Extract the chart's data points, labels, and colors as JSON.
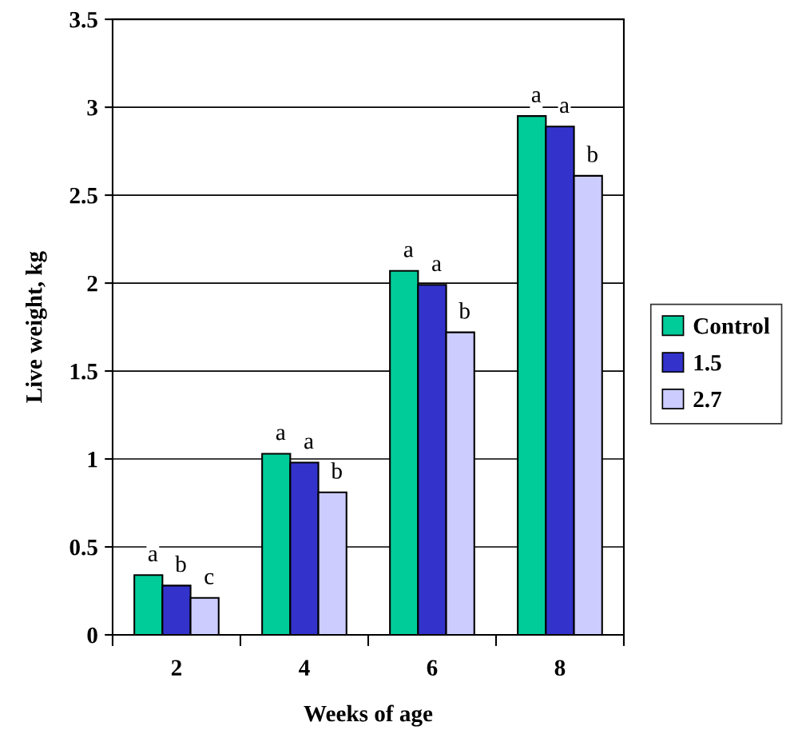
{
  "chart_data": {
    "type": "bar",
    "xlabel": "Weeks of age",
    "ylabel": "Live weight, kg",
    "categories": [
      "2",
      "4",
      "6",
      "8"
    ],
    "series": [
      {
        "name": "Control",
        "color": "#00cc99",
        "values": [
          0.34,
          1.03,
          2.07,
          2.95
        ],
        "value_labels": [
          "a",
          "a",
          "a",
          "a"
        ]
      },
      {
        "name": "1.5",
        "color": "#3333cc",
        "values": [
          0.28,
          0.98,
          1.99,
          2.89
        ],
        "value_labels": [
          "b",
          "a",
          "a",
          "a"
        ]
      },
      {
        "name": "2.7",
        "color": "#ccccff",
        "values": [
          0.21,
          0.81,
          1.72,
          2.61
        ],
        "value_labels": [
          "c",
          "b",
          "b",
          "b"
        ]
      }
    ],
    "ylim": [
      0,
      3.5
    ],
    "yticks": [
      0,
      0.5,
      1,
      1.5,
      2,
      2.5,
      3,
      3.5
    ],
    "grid": "y",
    "legend": "right"
  }
}
